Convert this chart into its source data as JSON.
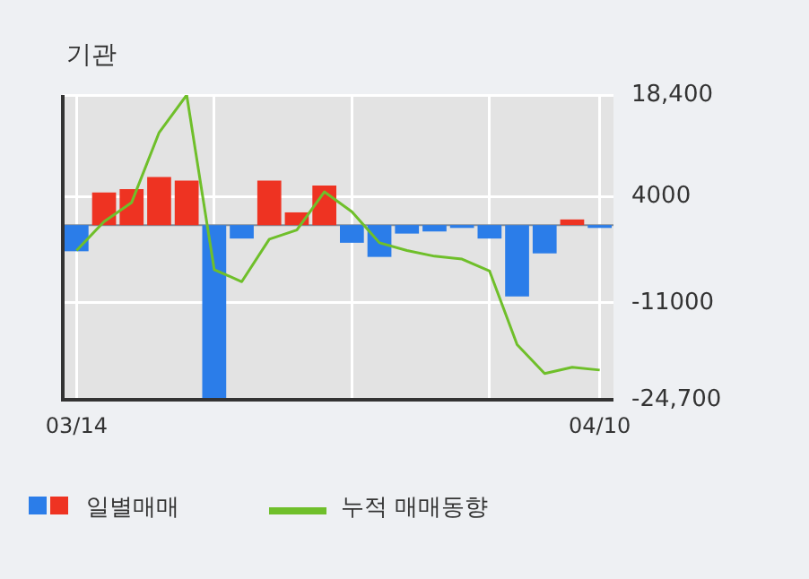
{
  "chart_data": {
    "type": "bar",
    "title": "기관",
    "categories": [
      "03/14",
      null,
      null,
      null,
      null,
      null,
      null,
      null,
      null,
      null,
      null,
      null,
      null,
      null,
      null,
      null,
      null,
      null,
      null,
      "04/10"
    ],
    "series": [
      {
        "name": "일별매매",
        "colors": [
          "#2b7de9",
          "#ee3322",
          "#ee3322",
          "#ee3322",
          "#ee3322",
          "#2b7de9",
          "#2b7de9",
          "#ee3322",
          "#ee3322",
          "#ee3322",
          "#2b7de9",
          "#2b7de9",
          "#2b7de9",
          "#2b7de9",
          "#2b7de9",
          "#2b7de9",
          "#2b7de9",
          "#2b7de9",
          "#ee3322",
          "#2b7de9"
        ],
        "values": [
          -3700,
          4600,
          5100,
          6800,
          6300,
          -24700,
          -1900,
          6300,
          1800,
          5600,
          -2500,
          -4500,
          -1200,
          -900,
          -400,
          -1900,
          -10100,
          -4000,
          800,
          -400
        ]
      },
      {
        "name": "누적 매매동향",
        "type": "line",
        "color": "#6fbf2a",
        "values": [
          -3600,
          500,
          3200,
          13100,
          18400,
          -6300,
          -8000,
          -2000,
          -700,
          4700,
          1900,
          -2500,
          -3600,
          -4400,
          -4800,
          -6500,
          -16900,
          -21000,
          -20100,
          -20500
        ]
      }
    ],
    "ylim": [
      -24700,
      18400
    ],
    "yticks": [
      {
        "value": 18400,
        "label": "18,400"
      },
      {
        "value": 4000,
        "label": "4000"
      },
      {
        "value": -11000,
        "label": "-11000"
      },
      {
        "value": -24700,
        "label": "-24,700"
      }
    ],
    "ref_lines": [
      {
        "axis": "y",
        "value": 0,
        "color": "#7f8c9a"
      }
    ],
    "grid": true,
    "legend": "bottom",
    "marker": "none",
    "line_style": "solid"
  }
}
